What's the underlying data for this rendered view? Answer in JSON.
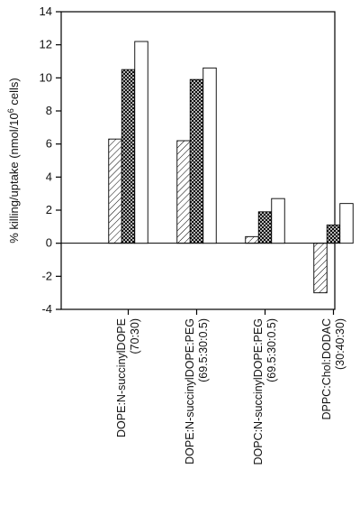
{
  "chart_data": {
    "type": "bar",
    "title": "",
    "xlabel": "",
    "ylabel_prefix": "% killing/uptake (nmol/10",
    "ylabel_sup": "6",
    "ylabel_suffix": " cells)",
    "ylim": [
      -4,
      14
    ],
    "yticks": [
      -4,
      -2,
      0,
      2,
      4,
      6,
      8,
      10,
      12,
      14
    ],
    "grid": false,
    "categories": [
      [
        "DOPE:N-succinylDOPE",
        "(70:30)"
      ],
      [
        "DOPE:N-succinylDOPE:PEG",
        "(69.5:30:0.5)"
      ],
      [
        "DOPC:N-succinylDOPE:PEG",
        "(69.5:30:0.5)"
      ],
      [
        "DPPC:Chol:DODAC",
        "(30:40:30)"
      ]
    ],
    "series": [
      {
        "fill": "hatch",
        "values": [
          6.3,
          6.2,
          0.4,
          -3.0
        ]
      },
      {
        "fill": "crosshatch",
        "values": [
          10.5,
          9.9,
          1.9,
          1.1
        ]
      },
      {
        "fill": "white",
        "values": [
          12.2,
          10.6,
          2.7,
          2.4
        ]
      }
    ]
  }
}
